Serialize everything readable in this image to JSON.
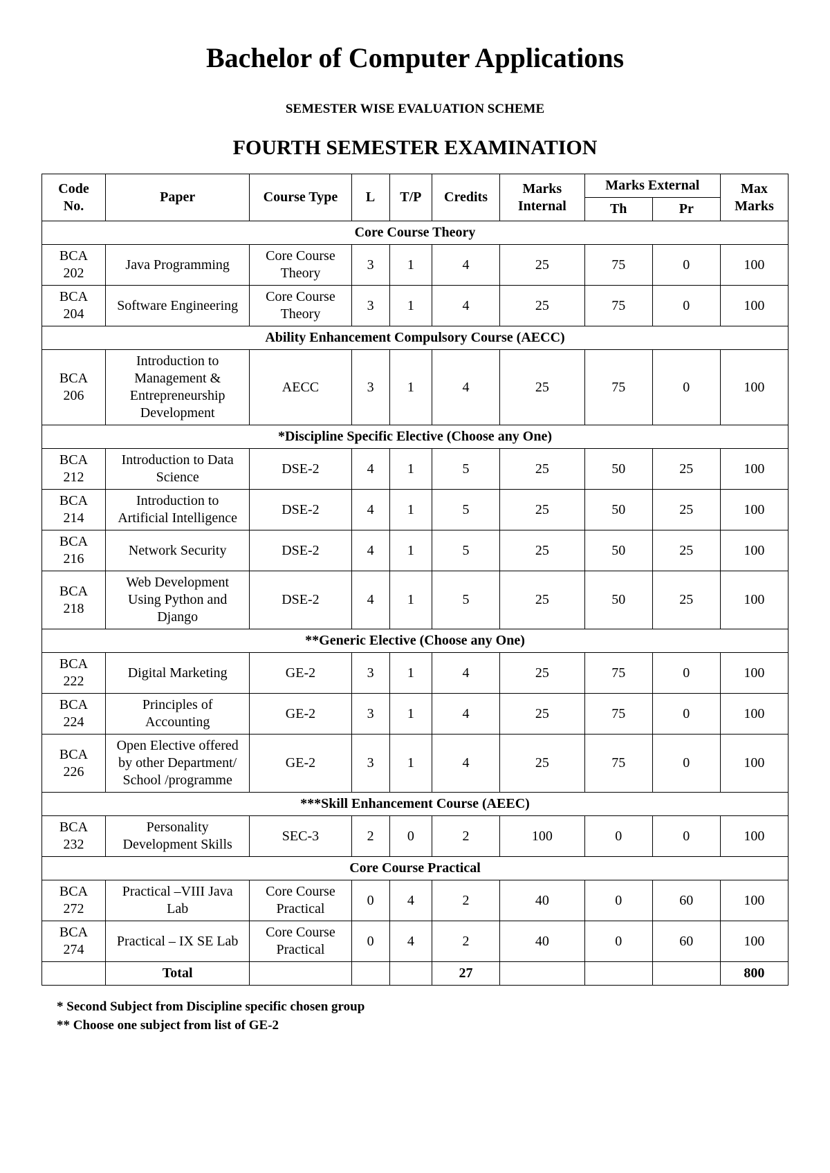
{
  "title": "Bachelor of Computer Applications",
  "schemeTitle": "SEMESTER WISE EVALUATION SCHEME",
  "semTitle": "FOURTH SEMESTER EXAMINATION",
  "headers": {
    "code": "Code No.",
    "paper": "Paper",
    "courseType": "Course Type",
    "l": "L",
    "tp": "T/P",
    "credits": "Credits",
    "marksInternal": "Marks Internal",
    "marksExternal": "Marks External",
    "th": "Th",
    "pr": "Pr",
    "maxMarks": "Max Marks"
  },
  "sections": [
    {
      "title": "Core Course Theory",
      "rows": [
        {
          "code": "BCA 202",
          "paper": "Java Programming",
          "type": "Core Course Theory",
          "l": "3",
          "tp": "1",
          "credits": "4",
          "int": "25",
          "th": "75",
          "pr": "0",
          "max": "100"
        },
        {
          "code": "BCA 204",
          "paper": "Software Engineering",
          "type": "Core Course Theory",
          "l": "3",
          "tp": "1",
          "credits": "4",
          "int": "25",
          "th": "75",
          "pr": "0",
          "max": "100"
        }
      ]
    },
    {
      "title": "Ability Enhancement Compulsory Course (AECC)",
      "rows": [
        {
          "code": "BCA 206",
          "paper": "Introduction to Management & Entrepreneurship Development",
          "type": "AECC",
          "l": "3",
          "tp": "1",
          "credits": "4",
          "int": "25",
          "th": "75",
          "pr": "0",
          "max": "100"
        }
      ]
    },
    {
      "title": "*Discipline Specific Elective (Choose any One)",
      "rows": [
        {
          "code": "BCA 212",
          "paper": "Introduction to Data Science",
          "type": "DSE-2",
          "l": "4",
          "tp": "1",
          "credits": "5",
          "int": "25",
          "th": "50",
          "pr": "25",
          "max": "100"
        },
        {
          "code": "BCA 214",
          "paper": "Introduction to Artificial Intelligence",
          "type": "DSE-2",
          "l": "4",
          "tp": "1",
          "credits": "5",
          "int": "25",
          "th": "50",
          "pr": "25",
          "max": "100"
        },
        {
          "code": "BCA 216",
          "paper": "Network Security",
          "type": "DSE-2",
          "l": "4",
          "tp": "1",
          "credits": "5",
          "int": "25",
          "th": "50",
          "pr": "25",
          "max": "100"
        },
        {
          "code": "BCA 218",
          "paper": "Web Development Using Python and Django",
          "type": "DSE-2",
          "l": "4",
          "tp": "1",
          "credits": "5",
          "int": "25",
          "th": "50",
          "pr": "25",
          "max": "100"
        }
      ]
    },
    {
      "title": "**Generic Elective (Choose any One)",
      "rows": [
        {
          "code": "BCA 222",
          "paper": "Digital Marketing",
          "type": "GE-2",
          "l": "3",
          "tp": "1",
          "credits": "4",
          "int": "25",
          "th": "75",
          "pr": "0",
          "max": "100"
        },
        {
          "code": "BCA 224",
          "paper": "Principles of Accounting",
          "type": "GE-2",
          "l": "3",
          "tp": "1",
          "credits": "4",
          "int": "25",
          "th": "75",
          "pr": "0",
          "max": "100"
        },
        {
          "code": "BCA 226",
          "paper": "Open Elective offered by other Department/ School /programme",
          "type": "GE-2",
          "l": "3",
          "tp": "1",
          "credits": "4",
          "int": "25",
          "th": "75",
          "pr": "0",
          "max": "100"
        }
      ]
    },
    {
      "title": "***Skill Enhancement Course (AEEC)",
      "rows": [
        {
          "code": "BCA 232",
          "paper": "Personality Development Skills",
          "type": "SEC-3",
          "l": "2",
          "tp": "0",
          "credits": "2",
          "int": "100",
          "th": "0",
          "pr": "0",
          "max": "100"
        }
      ]
    },
    {
      "title": "Core Course Practical",
      "rows": [
        {
          "code": "BCA 272",
          "paper": "Practical –VIII Java Lab",
          "type": "Core Course Practical",
          "l": "0",
          "tp": "4",
          "credits": "2",
          "int": "40",
          "th": "0",
          "pr": "60",
          "max": "100"
        },
        {
          "code": "BCA 274",
          "paper": "Practical  – IX SE Lab",
          "type": "Core Course Practical",
          "l": "0",
          "tp": "4",
          "credits": "2",
          "int": "40",
          "th": "0",
          "pr": "60",
          "max": "100"
        }
      ]
    }
  ],
  "total": {
    "label": "Total",
    "credits": "27",
    "max": "800"
  },
  "footnotes": [
    "* Second Subject from Discipline specific chosen group",
    "** Choose one subject from list of GE-2"
  ]
}
